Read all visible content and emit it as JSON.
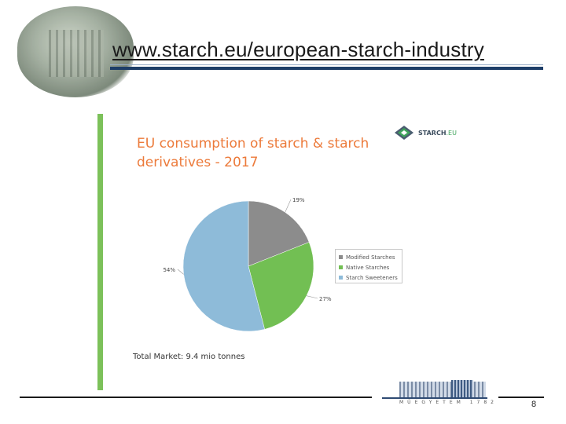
{
  "slide": {
    "title_url": "www.starch.eu/european-starch-industry",
    "page_number": "8"
  },
  "logo": {
    "text": "STARCH",
    "suffix": ".EU"
  },
  "footer_logo": {
    "text": "MŰEGYETEM 1782"
  },
  "chart_data": {
    "type": "pie",
    "title": "EU consumption of starch & starch derivatives - 2017",
    "slices": [
      {
        "label": "Modified Starches",
        "value": 19,
        "display": "19%",
        "color": "#8c8c8c"
      },
      {
        "label": "Native Starches",
        "value": 27,
        "display": "27%",
        "color": "#72bf53"
      },
      {
        "label": "Starch Sweeteners",
        "value": 54,
        "display": "54%",
        "color": "#8ebbd9"
      }
    ],
    "legend_position": "right",
    "footnote": "Total Market: 9.4 mio tonnes"
  }
}
